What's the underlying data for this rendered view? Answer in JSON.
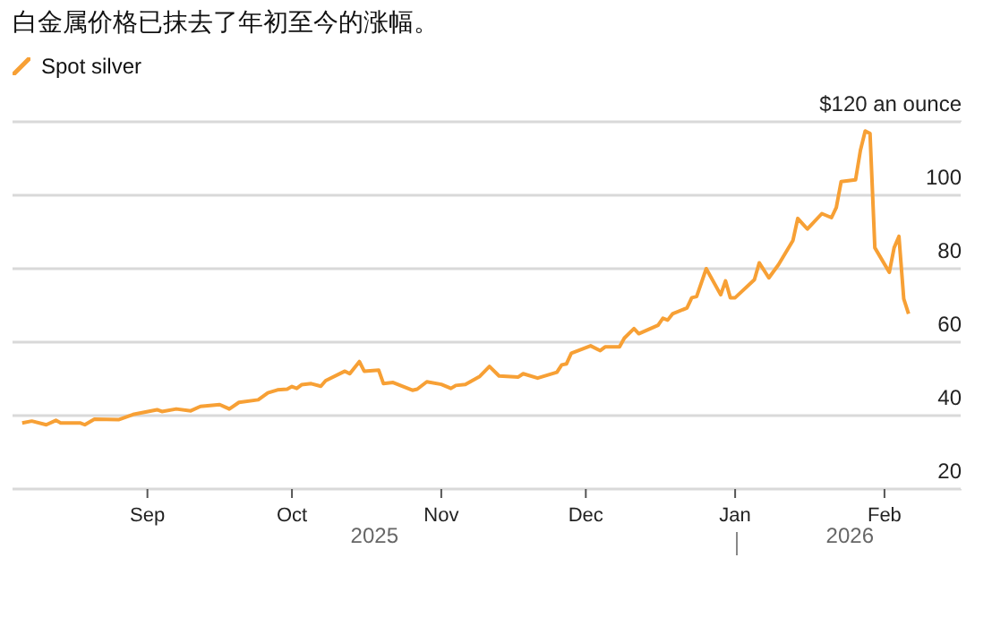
{
  "chart_data": {
    "type": "line",
    "title": "白金属价格已抹去了年初至今的涨幅。",
    "x": [
      "2025-08-06",
      "2025-08-08",
      "2025-08-11",
      "2025-08-13",
      "2025-08-14",
      "2025-08-18",
      "2025-08-19",
      "2025-08-21",
      "2025-08-26",
      "2025-08-29",
      "2025-09-03",
      "2025-09-04",
      "2025-09-07",
      "2025-09-10",
      "2025-09-12",
      "2025-09-16",
      "2025-09-18",
      "2025-09-20",
      "2025-09-24",
      "2025-09-26",
      "2025-09-28",
      "2025-09-30",
      "2025-10-01",
      "2025-10-02",
      "2025-10-03",
      "2025-10-05",
      "2025-10-07",
      "2025-10-08",
      "2025-10-12",
      "2025-10-13",
      "2025-10-15",
      "2025-10-16",
      "2025-10-19",
      "2025-10-20",
      "2025-10-22",
      "2025-10-26",
      "2025-10-27",
      "2025-10-29",
      "2025-11-01",
      "2025-11-03",
      "2025-11-04",
      "2025-11-06",
      "2025-11-09",
      "2025-11-11",
      "2025-11-13",
      "2025-11-17",
      "2025-11-18",
      "2025-11-21",
      "2025-11-25",
      "2025-11-26",
      "2025-11-27",
      "2025-11-28",
      "2025-12-02",
      "2025-12-04",
      "2025-12-05",
      "2025-12-08",
      "2025-12-09",
      "2025-12-11",
      "2025-12-12",
      "2025-12-16",
      "2025-12-17",
      "2025-12-18",
      "2025-12-19",
      "2025-12-22",
      "2025-12-23",
      "2025-12-24",
      "2025-12-26",
      "2025-12-29",
      "2025-12-30",
      "2025-12-31",
      "2026-01-01",
      "2026-01-05",
      "2026-01-06",
      "2026-01-08",
      "2026-01-10",
      "2026-01-13",
      "2026-01-14",
      "2026-01-16",
      "2026-01-19",
      "2026-01-21",
      "2026-01-22",
      "2026-01-23",
      "2026-01-26",
      "2026-01-27",
      "2026-01-28",
      "2026-01-29",
      "2026-01-30",
      "2026-02-02",
      "2026-02-03",
      "2026-02-04",
      "2026-02-05",
      "2026-02-06"
    ],
    "series": [
      {
        "name": "Spot silver",
        "color": "#f7a035",
        "values": [
          38.0,
          38.5,
          37.5,
          38.7,
          38.0,
          38.0,
          37.5,
          39.0,
          38.9,
          40.3,
          41.6,
          41.1,
          41.8,
          41.3,
          42.5,
          43.0,
          41.8,
          43.6,
          44.3,
          46.2,
          47.0,
          47.2,
          47.9,
          47.4,
          48.4,
          48.7,
          48.0,
          49.5,
          52.1,
          51.4,
          54.7,
          52.1,
          52.4,
          48.7,
          49.0,
          46.9,
          47.2,
          49.2,
          48.5,
          47.4,
          48.2,
          48.5,
          50.7,
          53.4,
          50.8,
          50.5,
          51.4,
          50.2,
          51.8,
          53.8,
          54.1,
          57.0,
          59.0,
          57.7,
          58.7,
          58.7,
          61.1,
          63.7,
          62.3,
          64.6,
          66.5,
          66.0,
          67.7,
          69.3,
          72.1,
          72.4,
          80.0,
          72.9,
          76.7,
          72.1,
          72.1,
          77.0,
          81.6,
          77.5,
          81.1,
          87.7,
          93.7,
          90.8,
          95.0,
          93.9,
          96.7,
          103.7,
          104.2,
          112.2,
          117.5,
          116.8,
          85.7,
          79.0,
          85.7,
          88.8,
          71.8,
          67.7
        ]
      }
    ],
    "xlim": [
      "2025-08-04",
      "2026-02-17"
    ],
    "xticks": [
      {
        "value": "2025-09-01",
        "label": "Sep"
      },
      {
        "value": "2025-10-01",
        "label": "Oct"
      },
      {
        "value": "2025-11-01",
        "label": "Nov"
      },
      {
        "value": "2025-12-01",
        "label": "Dec"
      },
      {
        "value": "2026-01-01",
        "label": "Jan"
      },
      {
        "value": "2026-02-01",
        "label": "Feb"
      }
    ],
    "ylim": [
      20,
      120
    ],
    "yticks": [
      20,
      40,
      60,
      80,
      100,
      {
        "value": 120,
        "label": "$120 an ounce"
      }
    ],
    "annotations": [
      "2025",
      "2026"
    ],
    "grid": "y",
    "legend": "top left",
    "marker": "none",
    "line_style": "solid"
  }
}
